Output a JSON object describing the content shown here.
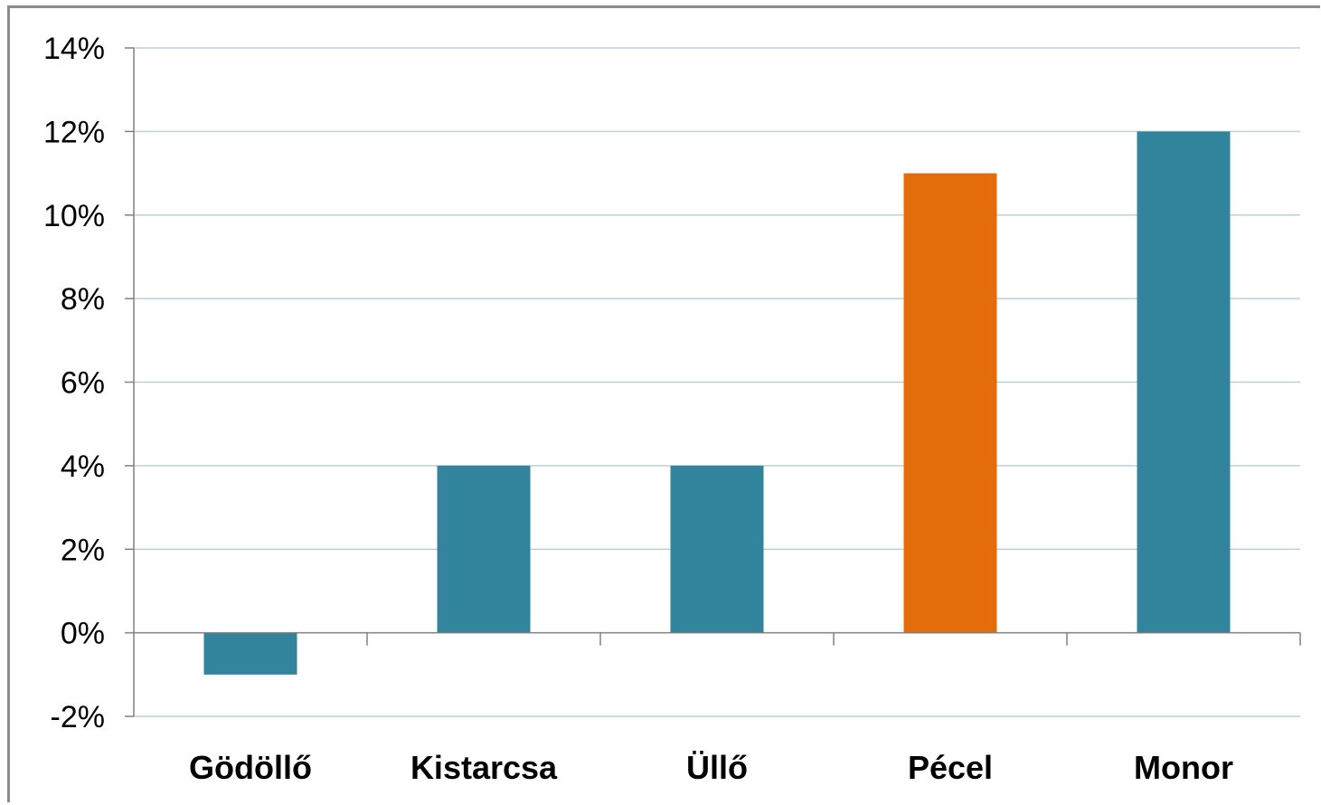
{
  "chart_data": {
    "type": "bar",
    "title": "",
    "xlabel": "",
    "ylabel": "",
    "categories": [
      "Gödöllő",
      "Kistarcsa",
      "Üllő",
      "Pécel",
      "Monor"
    ],
    "values": [
      -1,
      4,
      4,
      11,
      12
    ],
    "value_unit": "%",
    "ylim": [
      -2,
      14
    ],
    "yticks": [
      -2,
      0,
      2,
      4,
      6,
      8,
      10,
      12,
      14
    ],
    "ytick_labels": [
      "-2%",
      "0%",
      "2%",
      "4%",
      "6%",
      "8%",
      "10%",
      "12%",
      "14%"
    ],
    "grid": true,
    "legend": "none",
    "colors": {
      "default_bar": "#31849B",
      "highlight_bar": "#E46C0A",
      "grid": "#BCD0DC",
      "axis": "#808080"
    },
    "highlight_category": "Pécel"
  }
}
